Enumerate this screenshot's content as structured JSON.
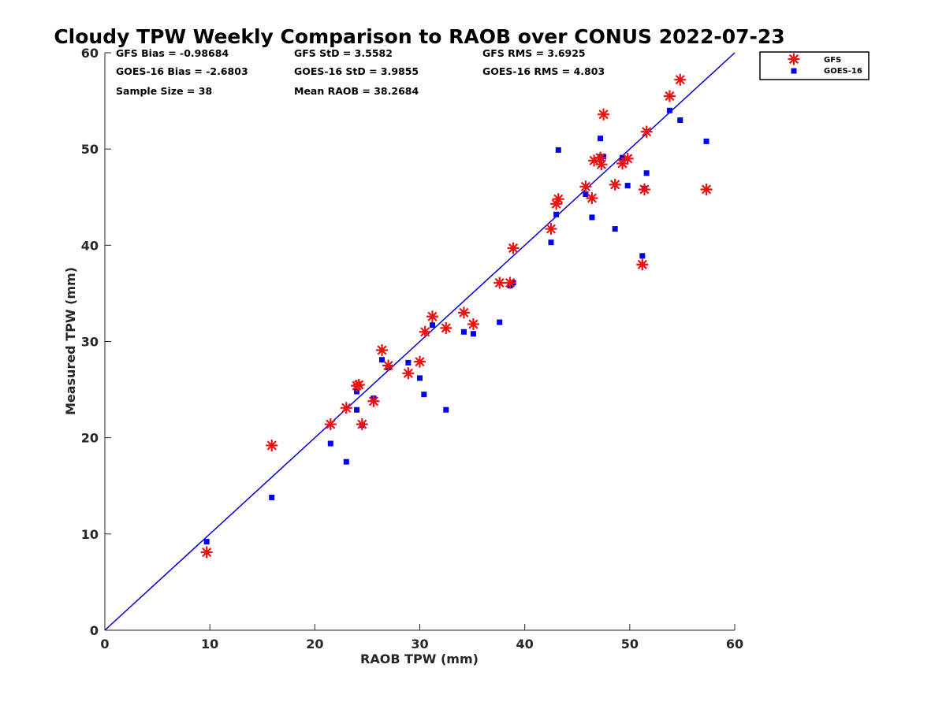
{
  "chart_data": {
    "type": "scatter",
    "title": "Cloudy TPW Weekly Comparison to RAOB over CONUS 2022-07-23",
    "xlabel": "RAOB TPW (mm)",
    "ylabel": "Measured TPW (mm)",
    "xlim": [
      0,
      60
    ],
    "ylim": [
      0,
      60
    ],
    "xticks": [
      0,
      10,
      20,
      30,
      40,
      50,
      60
    ],
    "yticks": [
      0,
      10,
      20,
      30,
      40,
      50,
      60
    ],
    "grid": false,
    "legend_position": "outside-top-right",
    "stats": [
      [
        "GFS Bias = -0.98684",
        "GFS StD = 3.5582",
        "GFS RMS = 3.6925"
      ],
      [
        "GOES-16 Bias = -2.6803",
        "GOES-16 StD = 3.9855",
        "GOES-16 RMS = 4.803"
      ],
      [
        "Sample Size = 38",
        "Mean RAOB = 38.2684"
      ]
    ],
    "reference_line": {
      "label": "1:1",
      "from": [
        0,
        0
      ],
      "to": [
        60,
        60
      ],
      "color": "#0000dd"
    },
    "series": [
      {
        "name": "GFS",
        "marker": "asterisk",
        "color": "#ee1111",
        "x": [
          9.7,
          15.9,
          21.5,
          23.0,
          24.0,
          24.2,
          24.5,
          25.6,
          26.4,
          27.0,
          28.9,
          30.0,
          30.5,
          31.2,
          32.5,
          34.2,
          35.1,
          37.6,
          38.6,
          38.9,
          42.5,
          43.0,
          43.2,
          45.8,
          46.4,
          46.6,
          47.2,
          47.3,
          47.5,
          49.3,
          49.8,
          51.4,
          51.6,
          53.8,
          54.8,
          57.3,
          51.2,
          48.6
        ],
        "y": [
          8.1,
          19.2,
          21.4,
          23.1,
          25.4,
          25.5,
          21.4,
          23.8,
          29.1,
          27.5,
          26.7,
          27.9,
          31.0,
          32.6,
          31.4,
          33.0,
          31.8,
          36.1,
          36.1,
          39.7,
          41.7,
          44.3,
          44.8,
          46.1,
          44.9,
          48.8,
          49.1,
          48.4,
          53.6,
          48.5,
          49.0,
          45.8,
          51.8,
          55.5,
          57.2,
          45.8,
          38.0,
          46.3
        ]
      },
      {
        "name": "GOES-16",
        "marker": "square",
        "color": "#0000ee",
        "x": [
          9.7,
          15.9,
          21.5,
          23.0,
          24.0,
          24.0,
          24.5,
          25.6,
          26.4,
          27.0,
          28.9,
          30.0,
          30.4,
          31.2,
          32.5,
          34.2,
          35.1,
          37.6,
          38.6,
          38.9,
          42.5,
          43.0,
          43.2,
          45.8,
          46.4,
          47.2,
          47.2,
          47.5,
          48.6,
          49.3,
          49.8,
          51.2,
          51.4,
          51.6,
          53.8,
          54.8,
          57.3,
          38.7
        ],
        "y": [
          9.2,
          13.8,
          19.4,
          17.5,
          24.8,
          22.9,
          21.3,
          24.1,
          28.1,
          27.3,
          27.8,
          26.2,
          24.5,
          31.7,
          22.9,
          31.0,
          30.8,
          32.0,
          35.8,
          36.1,
          40.3,
          43.2,
          49.9,
          45.3,
          42.9,
          51.1,
          49.2,
          49.2,
          41.7,
          49.1,
          46.2,
          38.9,
          45.9,
          47.5,
          54.0,
          53.0,
          50.8,
          36.0
        ]
      }
    ]
  }
}
